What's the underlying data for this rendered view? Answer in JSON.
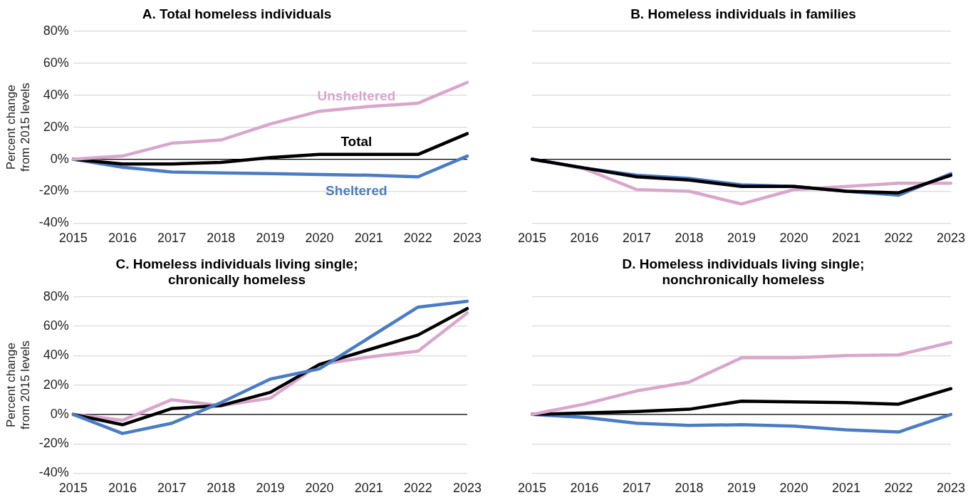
{
  "chart_data": [
    {
      "type": "line",
      "title": "A. Total homeless individuals",
      "ylabel": "Percent change from 2015 levels",
      "categories": [
        "2015",
        "2016",
        "2017",
        "2018",
        "2019",
        "2020",
        "2021",
        "2022",
        "2023"
      ],
      "ylim": [
        -40,
        80
      ],
      "yticks": [
        {
          "value": -40,
          "label": "-40%"
        },
        {
          "value": -20,
          "label": "-20%"
        },
        {
          "value": 0,
          "label": "0%"
        },
        {
          "value": 20,
          "label": "20%"
        },
        {
          "value": 40,
          "label": "40%"
        },
        {
          "value": 60,
          "label": "60%"
        },
        {
          "value": 80,
          "label": "80%"
        }
      ],
      "grid": "y",
      "legend": false,
      "marker": "none",
      "line_style": "solid",
      "ref_lines": [
        {
          "axis": "y",
          "value": 0,
          "color": "#000000"
        }
      ],
      "series": [
        {
          "name": "Unsheltered",
          "color": "#d9a6cc",
          "values": [
            0,
            2,
            10,
            12,
            22,
            30,
            33,
            35,
            48
          ]
        },
        {
          "name": "Total",
          "color": "#000000",
          "values": [
            0,
            -3,
            -3,
            -2,
            1,
            3,
            3,
            3,
            16
          ]
        },
        {
          "name": "Sheltered",
          "color": "#4a7cc4",
          "values": [
            0,
            -5,
            -8,
            -8.5,
            -9,
            -9.5,
            -10,
            -11,
            2
          ]
        }
      ]
    },
    {
      "type": "line",
      "title": "B. Homeless individuals in families",
      "categories": [
        "2015",
        "2016",
        "2017",
        "2018",
        "2019",
        "2020",
        "2021",
        "2022",
        "2023"
      ],
      "ylim": [
        -40,
        80
      ],
      "yticks": [
        -40,
        -20,
        0,
        20,
        40,
        60,
        80
      ],
      "tick_labels": "x",
      "grid": "y",
      "legend": false,
      "marker": "none",
      "line_style": "solid",
      "ref_lines": [
        {
          "axis": "y",
          "value": 0,
          "color": "#000000"
        }
      ],
      "series": [
        {
          "color": "#000000",
          "values": [
            0,
            -5.5,
            -11,
            -13,
            -17,
            -17,
            -20,
            -21,
            -10
          ]
        },
        {
          "color": "#4a7cc4",
          "values": [
            0,
            -5.5,
            -10,
            -12,
            -16,
            -17,
            -20,
            -22.5,
            -9
          ]
        },
        {
          "color": "#d9a6cc",
          "values": [
            0,
            -6,
            -19,
            -20,
            -28,
            -19,
            -17,
            -15,
            -15
          ]
        }
      ]
    },
    {
      "type": "line",
      "title": "C. Homeless individuals living single;\nchronically homeless",
      "ylabel": "Percent change from 2015 levels",
      "categories": [
        "2015",
        "2016",
        "2017",
        "2018",
        "2019",
        "2020",
        "2021",
        "2022",
        "2023"
      ],
      "ylim": [
        -40,
        80
      ],
      "yticks": [
        {
          "value": -40,
          "label": "-40%"
        },
        {
          "value": -20,
          "label": "-20%"
        },
        {
          "value": 0,
          "label": "0%"
        },
        {
          "value": 20,
          "label": "20%"
        },
        {
          "value": 40,
          "label": "40%"
        },
        {
          "value": 60,
          "label": "60%"
        },
        {
          "value": 80,
          "label": "80%"
        }
      ],
      "grid": "y",
      "legend": false,
      "marker": "none",
      "line_style": "solid",
      "ref_lines": [
        {
          "axis": "y",
          "value": 0,
          "color": "#000000"
        }
      ],
      "series": [
        {
          "color": "#4a7cc4",
          "values": [
            0,
            -13,
            -6,
            8,
            24,
            31,
            52,
            73,
            77
          ]
        },
        {
          "color": "#000000",
          "values": [
            0,
            -7,
            4,
            6,
            15,
            34,
            44,
            54,
            72
          ]
        },
        {
          "color": "#d9a6cc",
          "values": [
            0,
            -4,
            10,
            6,
            11,
            34,
            39,
            43,
            69
          ]
        }
      ]
    },
    {
      "type": "line",
      "title": "D. Homeless individuals living single;\nnonchronically homeless",
      "categories": [
        "2015",
        "2016",
        "2017",
        "2018",
        "2019",
        "2020",
        "2021",
        "2022",
        "2023"
      ],
      "ylim": [
        -40,
        80
      ],
      "yticks": [
        -40,
        -20,
        0,
        20,
        40,
        60,
        80
      ],
      "tick_labels": "x",
      "grid": "y",
      "legend": false,
      "marker": "none",
      "line_style": "solid",
      "ref_lines": [
        {
          "axis": "y",
          "value": 0,
          "color": "#000000"
        }
      ],
      "series": [
        {
          "color": "#d9a6cc",
          "values": [
            0,
            7,
            16,
            22,
            38.5,
            38.5,
            40,
            40.5,
            49
          ]
        },
        {
          "color": "#000000",
          "values": [
            0,
            1,
            2,
            3.5,
            9,
            8.5,
            8,
            7,
            17.5
          ]
        },
        {
          "color": "#4a7cc4",
          "values": [
            0,
            -2,
            -6,
            -7.5,
            -7,
            -8,
            -10.5,
            -12,
            0
          ]
        }
      ]
    }
  ]
}
